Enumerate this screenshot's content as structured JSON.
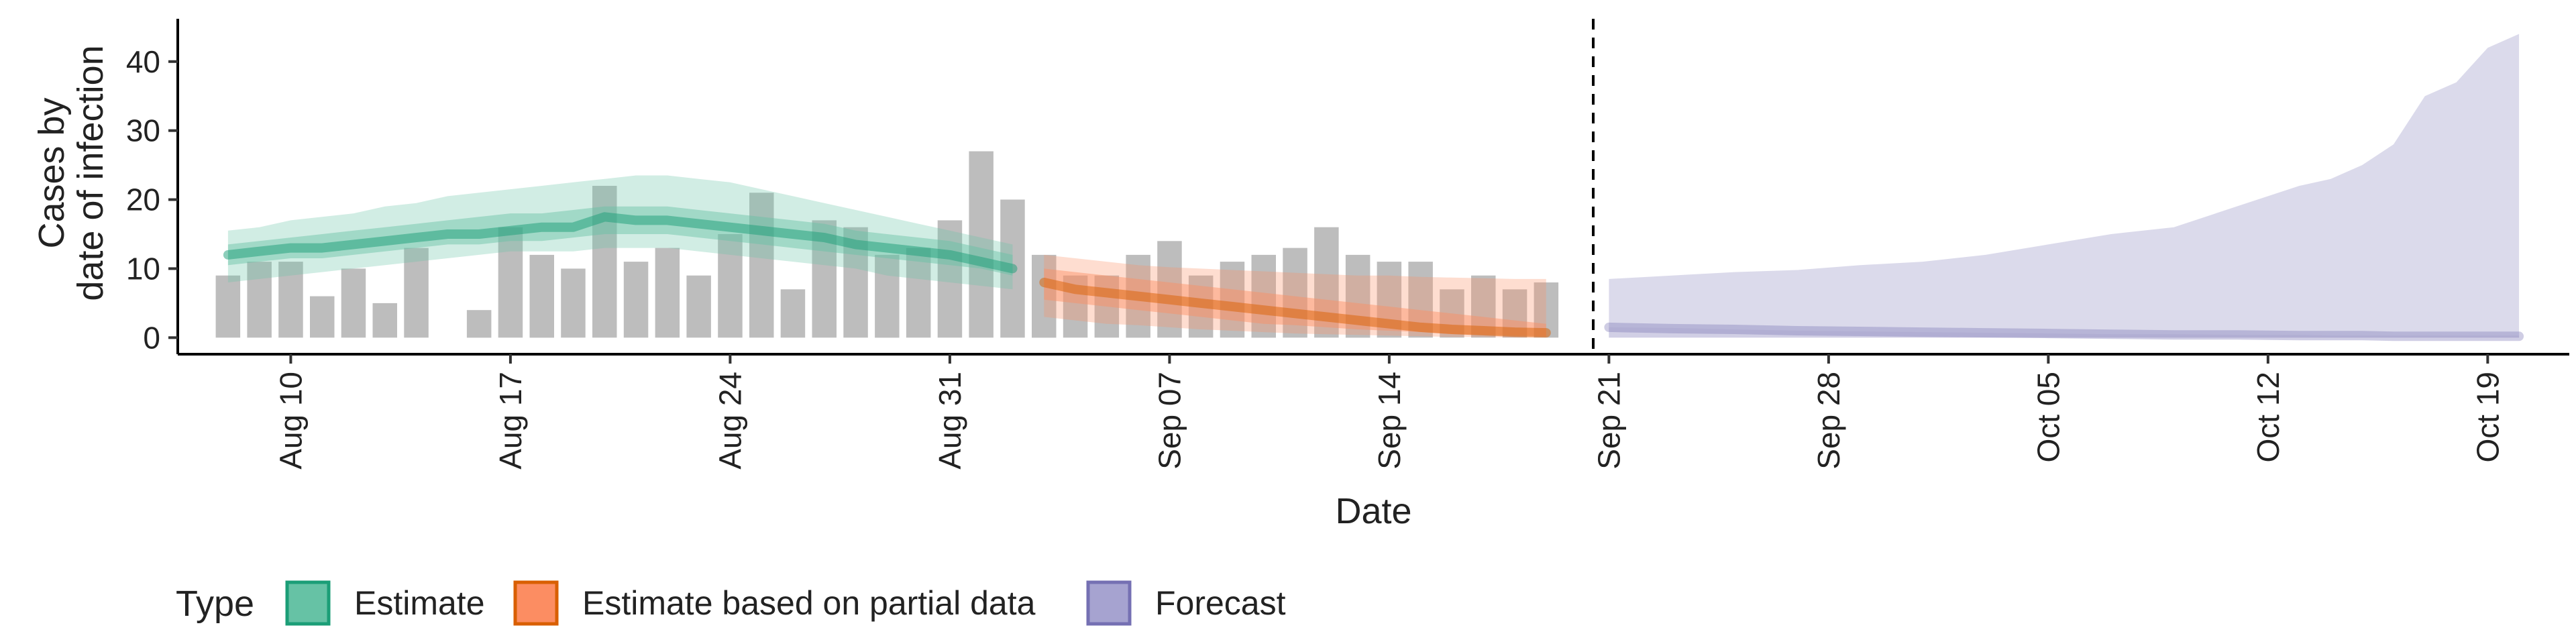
{
  "chart_data": {
    "type": "bar",
    "title": "",
    "xlabel": "Date",
    "ylabel": [
      "Cases by",
      "date of infection"
    ],
    "ylim": [
      0,
      45
    ],
    "yticks": [
      0,
      10,
      20,
      30,
      40
    ],
    "xticks": [
      "Aug 10",
      "Aug 17",
      "Aug 24",
      "Aug 31",
      "Sep 07",
      "Sep 14",
      "Sep 21",
      "Sep 28",
      "Oct 05",
      "Oct 12",
      "Oct 19"
    ],
    "date_range": [
      "2020-08-08",
      "2020-10-20"
    ],
    "forecast_start": "2020-09-20",
    "reported_cases": {
      "dates": [
        "2020-08-08",
        "2020-08-09",
        "2020-08-10",
        "2020-08-11",
        "2020-08-12",
        "2020-08-13",
        "2020-08-14",
        "2020-08-15",
        "2020-08-16",
        "2020-08-17",
        "2020-08-18",
        "2020-08-19",
        "2020-08-20",
        "2020-08-21",
        "2020-08-22",
        "2020-08-23",
        "2020-08-24",
        "2020-08-25",
        "2020-08-26",
        "2020-08-27",
        "2020-08-28",
        "2020-08-29",
        "2020-08-30",
        "2020-08-31",
        "2020-09-01",
        "2020-09-02",
        "2020-09-03",
        "2020-09-04",
        "2020-09-05",
        "2020-09-06",
        "2020-09-07",
        "2020-09-08",
        "2020-09-09",
        "2020-09-10",
        "2020-09-11",
        "2020-09-12",
        "2020-09-13",
        "2020-09-14",
        "2020-09-15",
        "2020-09-16",
        "2020-09-17",
        "2020-09-18",
        "2020-09-19"
      ],
      "values": [
        9,
        11,
        11,
        6,
        10,
        5,
        13,
        null,
        4,
        16,
        12,
        10,
        22,
        11,
        13,
        9,
        15,
        21,
        7,
        17,
        16,
        12,
        13,
        17,
        27,
        20,
        12,
        9,
        9,
        12,
        14,
        9,
        11,
        12,
        13,
        16,
        12,
        11,
        11,
        7,
        9,
        7,
        8
      ]
    },
    "series": [
      {
        "name": "Estimate",
        "color": "#1b9e77",
        "fill": "#66c2a5",
        "dates": [
          "2020-08-08",
          "2020-08-09",
          "2020-08-10",
          "2020-08-11",
          "2020-08-12",
          "2020-08-13",
          "2020-08-14",
          "2020-08-15",
          "2020-08-16",
          "2020-08-17",
          "2020-08-18",
          "2020-08-19",
          "2020-08-20",
          "2020-08-21",
          "2020-08-22",
          "2020-08-23",
          "2020-08-24",
          "2020-08-25",
          "2020-08-26",
          "2020-08-27",
          "2020-08-28",
          "2020-08-29",
          "2020-08-30",
          "2020-08-31",
          "2020-09-01",
          "2020-09-02"
        ],
        "median": [
          12,
          12.5,
          13,
          13,
          13.5,
          14,
          14.5,
          15,
          15,
          15.5,
          16,
          16,
          17.5,
          17,
          17,
          16.5,
          16,
          15.5,
          15,
          14.5,
          13.5,
          13,
          12.5,
          12,
          11,
          10
        ],
        "ci_outer": [
          [
            8,
            15.5
          ],
          [
            8.5,
            16
          ],
          [
            9,
            17
          ],
          [
            9.5,
            17.5
          ],
          [
            10,
            18
          ],
          [
            10.5,
            19
          ],
          [
            11,
            19.5
          ],
          [
            11.5,
            20.5
          ],
          [
            12,
            21
          ],
          [
            12.5,
            21.5
          ],
          [
            12.5,
            22
          ],
          [
            12.5,
            22.5
          ],
          [
            13,
            23
          ],
          [
            13,
            23.5
          ],
          [
            13,
            23.5
          ],
          [
            12.5,
            23
          ],
          [
            12,
            22.5
          ],
          [
            11.5,
            21.5
          ],
          [
            11,
            20.5
          ],
          [
            10.5,
            19.5
          ],
          [
            10,
            18.5
          ],
          [
            9,
            17.5
          ],
          [
            8.5,
            16.5
          ],
          [
            8,
            15.5
          ],
          [
            7.5,
            14.5
          ],
          [
            7,
            13.5
          ]
        ],
        "ci_inner": [
          [
            10.5,
            13.5
          ],
          [
            11,
            14
          ],
          [
            11.5,
            14.5
          ],
          [
            11.5,
            15
          ],
          [
            12,
            15.5
          ],
          [
            12.5,
            16
          ],
          [
            13,
            16.5
          ],
          [
            13.5,
            17
          ],
          [
            13.5,
            17.5
          ],
          [
            14,
            18
          ],
          [
            14,
            18
          ],
          [
            14.5,
            18.5
          ],
          [
            15,
            19
          ],
          [
            15,
            19
          ],
          [
            15,
            19
          ],
          [
            14.5,
            18.5
          ],
          [
            14,
            18
          ],
          [
            13.5,
            17.5
          ],
          [
            13,
            17
          ],
          [
            12.5,
            16.5
          ],
          [
            12,
            15.5
          ],
          [
            11.5,
            15
          ],
          [
            11,
            14.5
          ],
          [
            10.5,
            14
          ],
          [
            10,
            13
          ],
          [
            9,
            12
          ]
        ]
      },
      {
        "name": "Estimate based on partial data",
        "color": "#d95f02",
        "fill": "#fc8d62",
        "dates": [
          "2020-09-03",
          "2020-09-04",
          "2020-09-05",
          "2020-09-06",
          "2020-09-07",
          "2020-09-08",
          "2020-09-09",
          "2020-09-10",
          "2020-09-11",
          "2020-09-12",
          "2020-09-13",
          "2020-09-14",
          "2020-09-15",
          "2020-09-16",
          "2020-09-17",
          "2020-09-18",
          "2020-09-19"
        ],
        "median": [
          8,
          7,
          6.5,
          6,
          5.5,
          5,
          4.5,
          4,
          3.5,
          3,
          2.5,
          2,
          1.5,
          1.2,
          1,
          0.8,
          0.7
        ],
        "ci_outer": [
          [
            3,
            12
          ],
          [
            2.5,
            11.5
          ],
          [
            2,
            11
          ],
          [
            1.8,
            10.5
          ],
          [
            1.5,
            10.2
          ],
          [
            1.2,
            10
          ],
          [
            1,
            9.8
          ],
          [
            0.8,
            9.6
          ],
          [
            0.6,
            9.4
          ],
          [
            0.5,
            9.2
          ],
          [
            0.4,
            9
          ],
          [
            0.3,
            9
          ],
          [
            0.2,
            8.8
          ],
          [
            0.1,
            8.7
          ],
          [
            0.1,
            8.6
          ],
          [
            0,
            8.5
          ],
          [
            0,
            8.5
          ]
        ],
        "ci_inner": [
          [
            5.5,
            10
          ],
          [
            5,
            9.5
          ],
          [
            4.5,
            9
          ],
          [
            4,
            8.5
          ],
          [
            3.5,
            8
          ],
          [
            3,
            7.5
          ],
          [
            2.5,
            7
          ],
          [
            2,
            6.5
          ],
          [
            1.8,
            6
          ],
          [
            1.5,
            5.5
          ],
          [
            1.2,
            5
          ],
          [
            1,
            4.5
          ],
          [
            0.8,
            4
          ],
          [
            0.5,
            3.5
          ],
          [
            0.4,
            3
          ],
          [
            0.3,
            2.5
          ],
          [
            0.2,
            2
          ]
        ]
      },
      {
        "name": "Forecast",
        "color": "#7570b3",
        "fill": "#cfcde4",
        "dates": [
          "2020-09-21",
          "2020-09-23",
          "2020-09-25",
          "2020-09-27",
          "2020-09-29",
          "2020-10-01",
          "2020-10-03",
          "2020-10-05",
          "2020-10-07",
          "2020-10-09",
          "2020-10-11",
          "2020-10-13",
          "2020-10-14",
          "2020-10-15",
          "2020-10-16",
          "2020-10-17",
          "2020-10-18",
          "2020-10-19",
          "2020-10-20"
        ],
        "median": [
          1.5,
          1.3,
          1.2,
          1,
          0.9,
          0.8,
          0.7,
          0.6,
          0.5,
          0.4,
          0.4,
          0.3,
          0.3,
          0.3,
          0.2,
          0.2,
          0.2,
          0.2,
          0.2
        ],
        "ci_outer": [
          [
            0,
            8.5
          ],
          [
            0,
            9
          ],
          [
            0,
            9.5
          ],
          [
            0,
            9.8
          ],
          [
            0,
            10.5
          ],
          [
            0,
            11
          ],
          [
            0,
            12
          ],
          [
            0,
            13.5
          ],
          [
            0,
            15
          ],
          [
            0,
            16
          ],
          [
            0,
            19
          ],
          [
            0,
            22
          ],
          [
            0,
            23
          ],
          [
            0,
            25
          ],
          [
            0,
            28
          ],
          [
            0,
            35
          ],
          [
            0,
            37
          ],
          [
            0,
            42
          ],
          [
            0,
            44
          ]
        ],
        "ci_inner": [
          [
            0,
            1.5
          ],
          [
            0,
            1.4
          ],
          [
            0,
            1.2
          ],
          [
            0,
            1
          ],
          [
            0,
            0.9
          ],
          [
            0,
            0.8
          ],
          [
            0,
            0.7
          ],
          [
            0,
            0.6
          ],
          [
            0,
            0.5
          ],
          [
            0,
            0.5
          ],
          [
            0,
            0.4
          ],
          [
            0,
            0.4
          ],
          [
            0,
            0.3
          ],
          [
            0,
            0.3
          ],
          [
            0,
            0.3
          ],
          [
            0,
            0.3
          ],
          [
            0,
            0.3
          ],
          [
            0,
            0.3
          ],
          [
            0,
            0.3
          ]
        ]
      }
    ],
    "legend": {
      "title": "Type",
      "position": "bottom",
      "entries": [
        {
          "label": "Estimate",
          "fill": "#66c2a5",
          "stroke": "#1b9e77"
        },
        {
          "label": "Estimate based on partial data",
          "fill": "#fc8d62",
          "stroke": "#d95f02"
        },
        {
          "label": "Forecast",
          "fill": "#a6a3d0",
          "stroke": "#7570b3"
        }
      ]
    },
    "bar_color": "#bdbdbd",
    "grid": false
  }
}
